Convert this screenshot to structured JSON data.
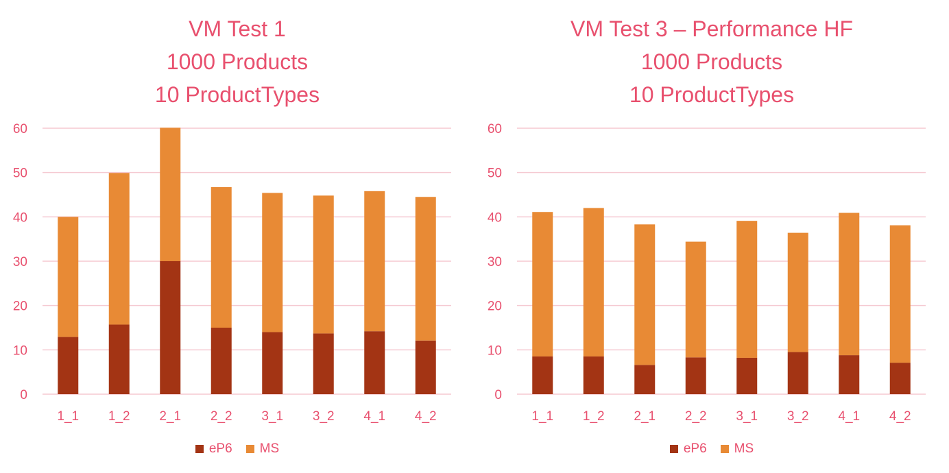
{
  "chart_data": [
    {
      "type": "bar",
      "stacked": true,
      "title_lines": [
        "VM Test 1",
        "1000 Products",
        "10 ProductTypes"
      ],
      "categories": [
        "1_1",
        "1_2",
        "2_1",
        "2_2",
        "3_1",
        "3_2",
        "4_1",
        "4_2"
      ],
      "series": [
        {
          "name": "eP6",
          "color": "#a33414",
          "values": [
            12.9,
            15.7,
            30.0,
            15.0,
            14.0,
            13.7,
            14.2,
            12.1
          ]
        },
        {
          "name": "MS",
          "color": "#e88a35",
          "values": [
            27.1,
            34.2,
            30.1,
            31.7,
            31.4,
            31.1,
            31.6,
            32.4
          ]
        }
      ],
      "y_ticks": [
        "0",
        "10",
        "20",
        "30",
        "40",
        "50",
        "60"
      ],
      "ylim": [
        0,
        60
      ],
      "grid": true,
      "legend_position": "bottom"
    },
    {
      "type": "bar",
      "stacked": true,
      "title_lines": [
        "VM Test 3 – Performance HF",
        "1000 Products",
        "10 ProductTypes"
      ],
      "categories": [
        "1_1",
        "1_2",
        "2_1",
        "2_2",
        "3_1",
        "3_2",
        "4_1",
        "4_2"
      ],
      "series": [
        {
          "name": "eP6",
          "color": "#a33414",
          "values": [
            8.5,
            8.5,
            6.6,
            8.3,
            8.2,
            9.5,
            8.8,
            7.1
          ]
        },
        {
          "name": "MS",
          "color": "#e88a35",
          "values": [
            32.6,
            33.5,
            31.7,
            26.1,
            30.9,
            26.9,
            32.1,
            31.0
          ]
        }
      ],
      "y_ticks": [
        "0",
        "10",
        "20",
        "30",
        "40",
        "50",
        "60"
      ],
      "ylim": [
        0,
        60
      ],
      "grid": true,
      "legend_position": "bottom"
    }
  ]
}
